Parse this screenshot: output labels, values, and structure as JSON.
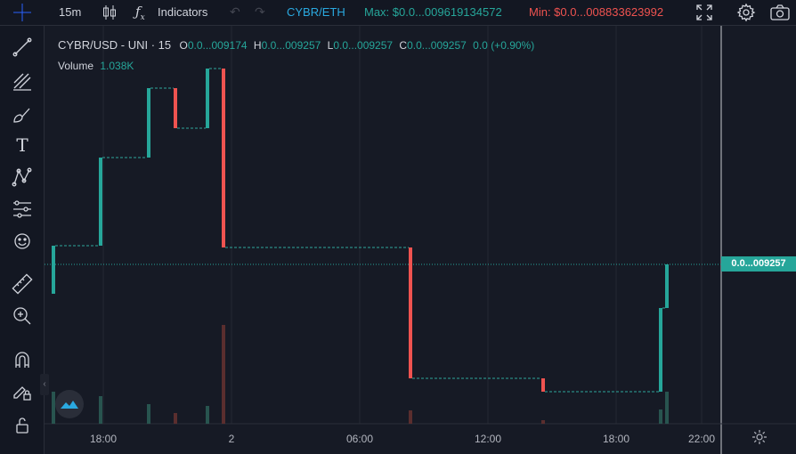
{
  "toolbar": {
    "interval": "15m",
    "indicators_label": "Indicators",
    "pair_label": "CYBR/ETH",
    "max_label": "Max: $0.0...009619134572",
    "min_label": "Min: $0.0...008833623992"
  },
  "legend": {
    "symbol": "CYBR/USD - UNI · 15",
    "o_key": "O",
    "o_val": "0.0...009174",
    "h_key": "H",
    "h_val": "0.0...009257",
    "l_key": "L",
    "l_val": "0.0...009257",
    "c_key": "C",
    "c_val": "0.0...009257",
    "change": "0.0 (+0.90%)",
    "volume_label": "Volume",
    "volume_value": "1.038K"
  },
  "price_axis": {
    "current_price": "0.0...009257"
  },
  "time_axis": {
    "ticks": [
      "18:00",
      "2",
      "06:00",
      "12:00",
      "18:00",
      "22:00"
    ]
  },
  "colors": {
    "up": "#26a69a",
    "down": "#ef5350",
    "background": "#161a25",
    "grid": "#242832",
    "vol_up": "#28544f",
    "vol_down": "#5a2e2e",
    "text": "#d1d4dc",
    "max_color": "#26a69a",
    "min_color": "#ef5350",
    "pair_color": "#2aa9e0"
  },
  "sidebar_icons": [
    "crosshair-icon",
    "trendline-icon",
    "fib-icon",
    "brush-icon",
    "text-icon",
    "pattern-icon",
    "prediction-icon",
    "emoji-icon",
    "ruler-icon",
    "zoom-in-icon",
    "magnet-icon",
    "lock-drawing-icon",
    "unlock-icon"
  ],
  "chart_data": {
    "type": "candlestick",
    "candles": [
      {
        "dir": "up",
        "top": 276,
        "bottom": 330,
        "vol": 440
      },
      {
        "dir": "up",
        "top": 177,
        "bottom": 276,
        "vol": 445
      },
      {
        "dir": "up",
        "top": 99,
        "bottom": 177,
        "vol": 454
      },
      {
        "dir": "down",
        "top": 99,
        "bottom": 144,
        "vol": 464
      },
      {
        "dir": "up",
        "top": 77,
        "bottom": 144,
        "vol": 456
      },
      {
        "dir": "down",
        "top": 77,
        "bottom": 278,
        "vol": 365
      },
      {
        "dir": "down",
        "top": 278,
        "bottom": 425,
        "vol": 461
      },
      {
        "dir": "down",
        "top": 425,
        "bottom": 440,
        "vol": 472
      },
      {
        "dir": "up",
        "top": 346,
        "bottom": 440,
        "vol": 460
      },
      {
        "dir": "up",
        "top": 297,
        "bottom": 346,
        "vol": 440
      }
    ]
  }
}
